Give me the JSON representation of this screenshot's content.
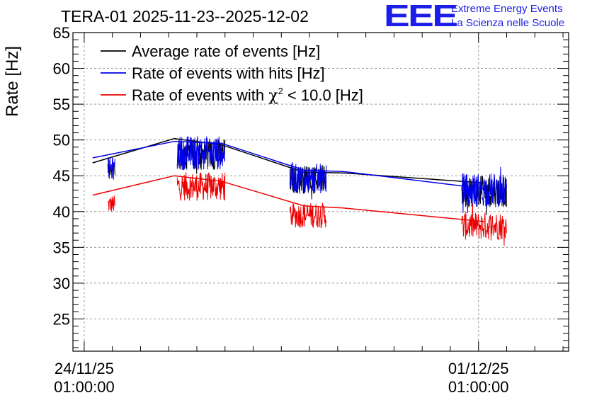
{
  "header": {
    "title": "TERA-01 2025-11-23--2025-12-02",
    "logo_text": "EEE",
    "logo_line1": "Extreme Energy Events",
    "logo_line2": "La Scienza nelle Scuole"
  },
  "colors": {
    "average": "#000000",
    "hits": "#0000ee",
    "chi2": "#ee0000",
    "grid": "#9a9a9a",
    "logo": "#1d1de8"
  },
  "chart_data": {
    "type": "line",
    "title": "TERA-01 2025-11-23--2025-12-02",
    "ylabel": "Rate [Hz]",
    "xlabel": "",
    "ylim": [
      20.5,
      65
    ],
    "yticks": [
      25,
      30,
      35,
      40,
      45,
      50,
      55,
      60,
      65
    ],
    "xlim_days": [
      -0.2,
      8.6
    ],
    "xticks": [
      {
        "day": 0,
        "date": "24/11/25",
        "time": "01:00:00"
      },
      {
        "day": 7,
        "date": "01/12/25",
        "time": "01:00:00"
      }
    ],
    "grid": true,
    "legend_position": "top-left",
    "series": [
      {
        "name": "Average rate of events [Hz]",
        "key": "average",
        "trend": [
          [
            0.15,
            46.8
          ],
          [
            1.6,
            50.2
          ],
          [
            2.45,
            49.3
          ],
          [
            3.9,
            45.5
          ],
          [
            4.6,
            45.4
          ],
          [
            7.1,
            44.0
          ]
        ],
        "bursts": [
          {
            "start": 0.42,
            "end": 0.55,
            "mean": 46.0,
            "noise": 1.5
          },
          {
            "start": 1.65,
            "end": 2.5,
            "mean": 48.0,
            "noise": 2.2
          },
          {
            "start": 3.65,
            "end": 4.3,
            "mean": 44.5,
            "noise": 2.0
          },
          {
            "start": 6.7,
            "end": 7.5,
            "mean": 42.8,
            "noise": 2.2
          }
        ]
      },
      {
        "name": "Rate of events with hits [Hz]",
        "key": "hits",
        "trend": [
          [
            0.15,
            47.5
          ],
          [
            1.6,
            49.8
          ],
          [
            2.45,
            49.5
          ],
          [
            3.9,
            45.8
          ],
          [
            4.6,
            45.6
          ],
          [
            7.1,
            43.2
          ]
        ],
        "bursts": [
          {
            "start": 0.42,
            "end": 0.55,
            "mean": 46.0,
            "noise": 1.6
          },
          {
            "start": 1.65,
            "end": 2.5,
            "mean": 48.2,
            "noise": 2.4
          },
          {
            "start": 3.65,
            "end": 4.3,
            "mean": 44.6,
            "noise": 2.1
          },
          {
            "start": 6.7,
            "end": 7.5,
            "mean": 43.0,
            "noise": 2.4
          }
        ]
      },
      {
        "name": "Rate of events with χ2 < 10.0 [Hz]",
        "key": "chi2",
        "legend_prefix": "Rate of events with ",
        "legend_symbol": "χ",
        "legend_sup": "2",
        "legend_suffix": " < 10.0 [Hz]",
        "trend": [
          [
            0.15,
            42.3
          ],
          [
            1.6,
            45.0
          ],
          [
            2.45,
            44.2
          ],
          [
            3.9,
            40.8
          ],
          [
            4.6,
            40.5
          ],
          [
            7.1,
            38.6
          ]
        ],
        "bursts": [
          {
            "start": 0.42,
            "end": 0.55,
            "mean": 41.0,
            "noise": 1.3
          },
          {
            "start": 1.65,
            "end": 2.5,
            "mean": 43.5,
            "noise": 2.0
          },
          {
            "start": 3.65,
            "end": 4.3,
            "mean": 39.5,
            "noise": 1.8
          },
          {
            "start": 6.7,
            "end": 7.5,
            "mean": 38.0,
            "noise": 2.0
          }
        ]
      }
    ]
  }
}
